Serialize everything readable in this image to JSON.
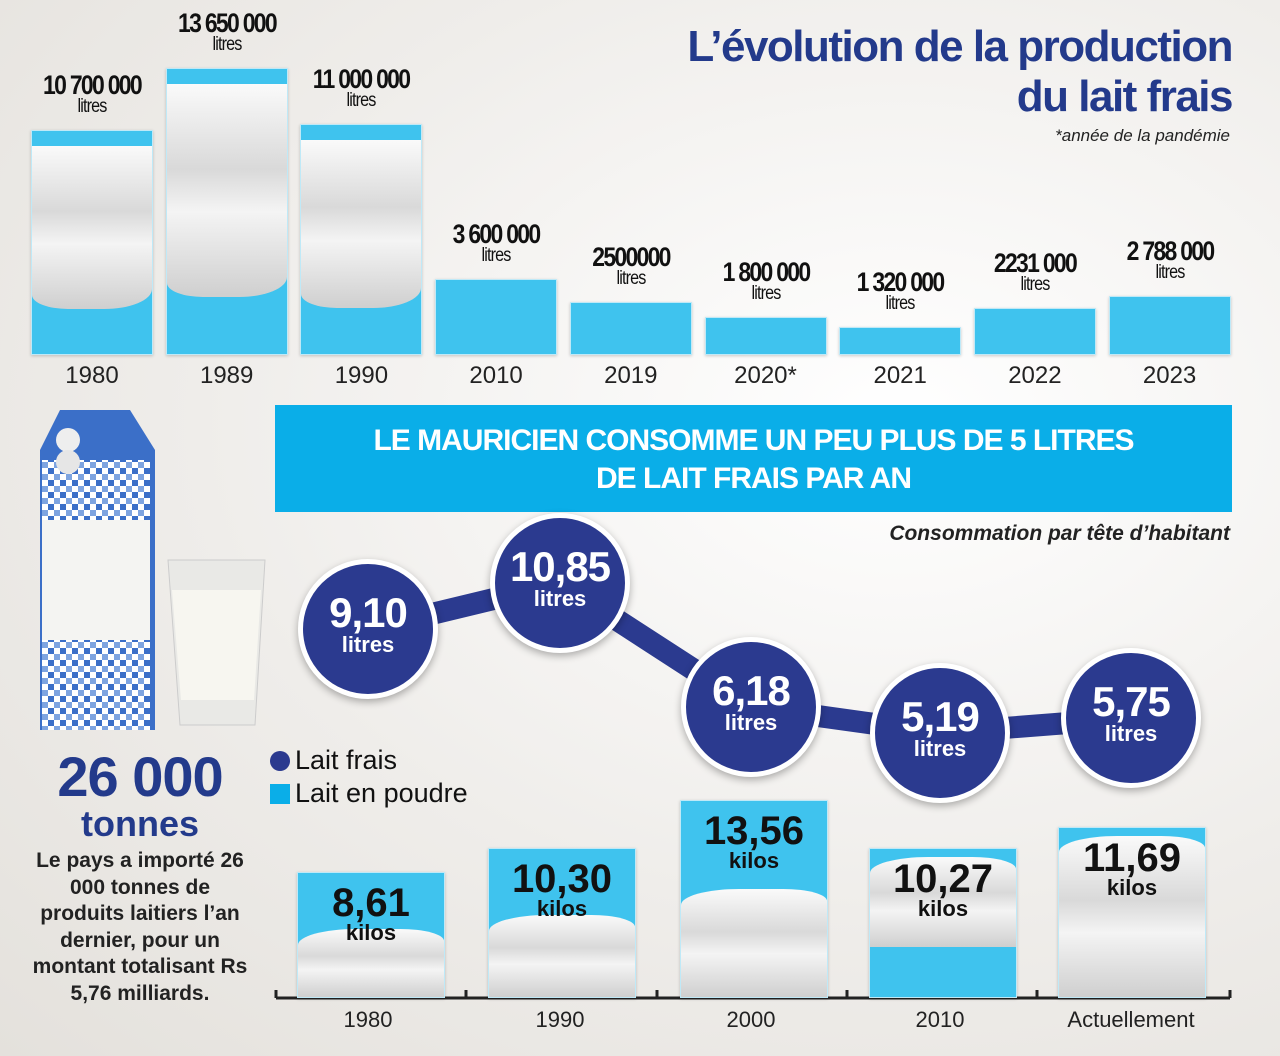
{
  "title": {
    "line1": "L’évolution de la production",
    "line2": "du lait frais",
    "note": "*année de la pandémie"
  },
  "banner": {
    "line1": "LE MAURICIEN CONSOMME UN PEU PLUS DE 5 LITRES",
    "line2": "DE LAIT FRAIS PAR AN"
  },
  "subtitle": "Consommation par tête d’habitant",
  "legend": {
    "fresh": "Lait frais",
    "powder": "Lait en poudre"
  },
  "imports": {
    "value": "26 000",
    "unit": "tonnes",
    "text": "Le pays a importé 26 000 tonnes de produits laitiers l’an dernier, pour un montant totalisant Rs 5,76 milliards."
  },
  "colors": {
    "navy": "#2b3a8f",
    "cyan": "#0aaee8",
    "title": "#233a8b"
  },
  "chart_data": [
    {
      "type": "bar",
      "categories": [
        "1980",
        "1989",
        "1990",
        "2010",
        "2019",
        "2020*",
        "2021",
        "2022",
        "2023"
      ],
      "values": [
        10700000,
        13650000,
        11000000,
        3600000,
        2500000,
        1800000,
        1320000,
        2231000,
        2788000
      ],
      "labels": [
        "10 700 000",
        "13 650 000",
        "11 000 000",
        "3 600 000",
        "2500000",
        "1 800 000",
        "1 320 000",
        "2231 000",
        "2 788 000"
      ],
      "unit": "litres"
    },
    {
      "type": "line",
      "series": [
        {
          "name": "Lait frais",
          "x": [
            "1980",
            "1990",
            "2000",
            "2010",
            "Actuellement"
          ],
          "values": [
            9.1,
            10.85,
            6.18,
            5.19,
            5.75
          ],
          "labels": [
            "9,10",
            "10,85",
            "6,18",
            "5,19",
            "5,75"
          ],
          "unit": "litres"
        }
      ]
    },
    {
      "type": "bar",
      "series": [
        {
          "name": "Lait en poudre",
          "categories": [
            "1980",
            "1990",
            "2000",
            "2010",
            "Actuellement"
          ],
          "values": [
            8.61,
            10.3,
            13.56,
            10.27,
            11.69
          ],
          "labels": [
            "8,61",
            "10,30",
            "13,56",
            "10,27",
            "11,69"
          ],
          "unit": "kilos"
        }
      ]
    }
  ]
}
